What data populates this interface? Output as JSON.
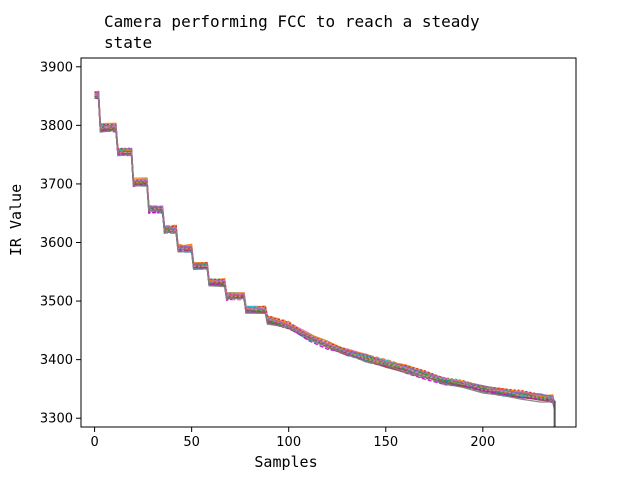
{
  "chart_data": {
    "type": "line",
    "title_line1": "Camera performing FCC to reach a steady",
    "title_line2": "state",
    "xlabel": "Samples",
    "ylabel": "IR Value",
    "xlim": [
      -7,
      248
    ],
    "ylim": [
      3285,
      3915
    ],
    "xticks": [
      0,
      50,
      100,
      150,
      200
    ],
    "yticks": [
      3300,
      3400,
      3500,
      3600,
      3700,
      3800,
      3900
    ],
    "grid": false,
    "series_count": 30,
    "series_template": {
      "x": [
        0,
        2,
        3,
        11,
        12,
        19,
        20,
        27,
        28,
        35,
        36,
        42,
        43,
        50,
        51,
        58,
        59,
        67,
        68,
        77,
        78,
        88,
        89,
        100,
        110,
        120,
        130,
        140,
        150,
        160,
        170,
        180,
        190,
        200,
        210,
        220,
        230,
        236,
        237
      ],
      "y": [
        3852,
        3852,
        3796,
        3796,
        3755,
        3755,
        3703,
        3703,
        3657,
        3657,
        3622,
        3622,
        3590,
        3590,
        3560,
        3560,
        3532,
        3532,
        3508,
        3508,
        3485,
        3485,
        3468,
        3458,
        3440,
        3425,
        3413,
        3402,
        3393,
        3384,
        3374,
        3364,
        3358,
        3350,
        3344,
        3340,
        3335,
        3333,
        3320
      ]
    },
    "colors": [
      "#1f77b4",
      "#ff7f0e",
      "#2ca02c",
      "#d62728",
      "#9467bd",
      "#8c564b",
      "#e377c2",
      "#7f7f7f",
      "#bcbd22",
      "#17becf",
      "#cc00cc"
    ]
  }
}
